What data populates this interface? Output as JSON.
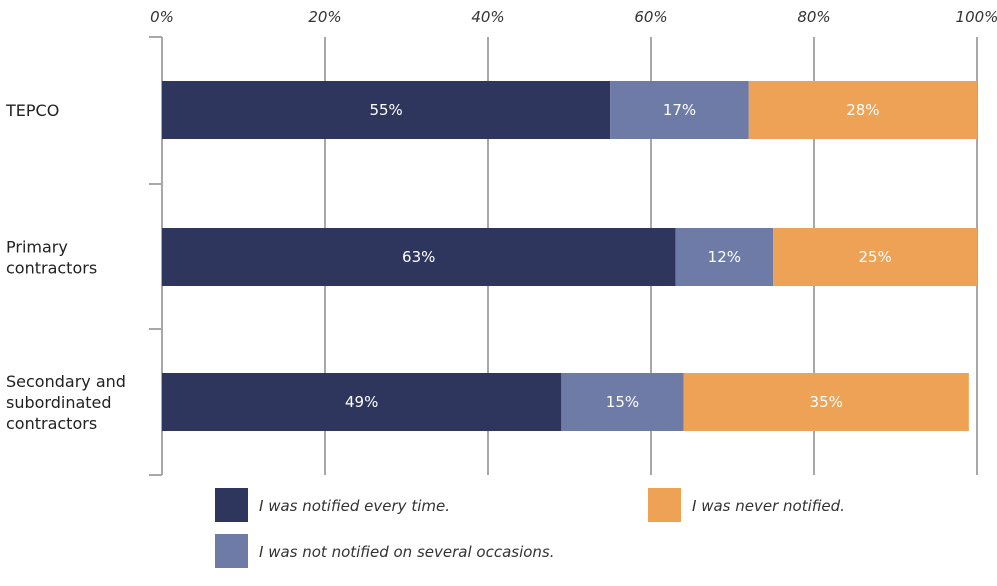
{
  "chart_data": {
    "type": "bar",
    "orientation": "horizontal",
    "stacked": true,
    "categories": [
      [
        "TEPCO"
      ],
      [
        "Primary",
        "contractors"
      ],
      [
        "Secondary and",
        "subordinated",
        "contractors"
      ]
    ],
    "series": [
      {
        "name": "I was notified every time.",
        "values": [
          55,
          63,
          49
        ],
        "labels": [
          "55%",
          "63%",
          "49%"
        ],
        "color": "#2e365e"
      },
      {
        "name": "I was not notified on several occasions.",
        "values": [
          17,
          12,
          15
        ],
        "labels": [
          "17%",
          "12%",
          "15%"
        ],
        "color": "#6e7ba6"
      },
      {
        "name": "I was never notified.",
        "values": [
          28,
          25,
          35
        ],
        "labels": [
          "28%",
          "25%",
          "35%"
        ],
        "color": "#eda255"
      }
    ],
    "x_ticks": [
      "0%",
      "20%",
      "40%",
      "60%",
      "80%",
      "100%"
    ],
    "xlim": [
      0,
      100
    ],
    "x_axis_position": "top",
    "grid": true,
    "legend_position": "bottom"
  }
}
